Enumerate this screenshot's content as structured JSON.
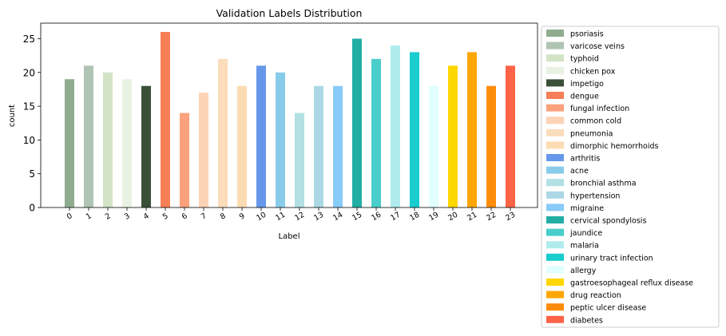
{
  "chart_data": {
    "type": "bar",
    "title": "Validation Labels Distribution",
    "xlabel": "Label",
    "ylabel": "count",
    "ylim": [
      0,
      27.3
    ],
    "yticks": [
      0,
      5,
      10,
      15,
      20,
      25
    ],
    "grid": false,
    "legend_position": "outside-right",
    "categories": [
      "0",
      "1",
      "2",
      "3",
      "4",
      "5",
      "6",
      "7",
      "8",
      "9",
      "10",
      "11",
      "12",
      "13",
      "14",
      "15",
      "16",
      "17",
      "18",
      "19",
      "20",
      "21",
      "22",
      "23"
    ],
    "values": [
      19,
      21,
      20,
      19,
      18,
      26,
      14,
      17,
      22,
      18,
      21,
      20,
      14,
      18,
      18,
      25,
      22,
      24,
      23,
      18,
      21,
      23,
      18,
      21
    ],
    "series_names": [
      "psoriasis",
      "varicose veins",
      "typhoid",
      "chicken pox",
      "impetigo",
      "dengue",
      "fungal infection",
      "common cold",
      "pneumonia",
      "dimorphic hemorrhoids",
      "arthritis",
      "acne",
      "bronchial asthma",
      "hypertension",
      "migraine",
      "cervical spondylosis",
      "jaundice",
      "malaria",
      "urinary tract infection",
      "allergy",
      "gastroesophageal reflux disease",
      "drug reaction",
      "peptic ulcer disease",
      "diabetes"
    ],
    "colors": [
      "#8fac8f",
      "#afc4b3",
      "#d2e3c6",
      "#e9f1e3",
      "#3a4f38",
      "#f77f55",
      "#fba17b",
      "#fdd3b5",
      "#fbdcbb",
      "#fbdcb2",
      "#6598ea",
      "#89ccea",
      "#b2e0e3",
      "#acd8e6",
      "#88cbf9",
      "#22aea4",
      "#49cecb",
      "#b0eced",
      "#19ccce",
      "#e0fffe",
      "#fed701",
      "#fda605",
      "#fd8c0a",
      "#fd6347"
    ]
  }
}
